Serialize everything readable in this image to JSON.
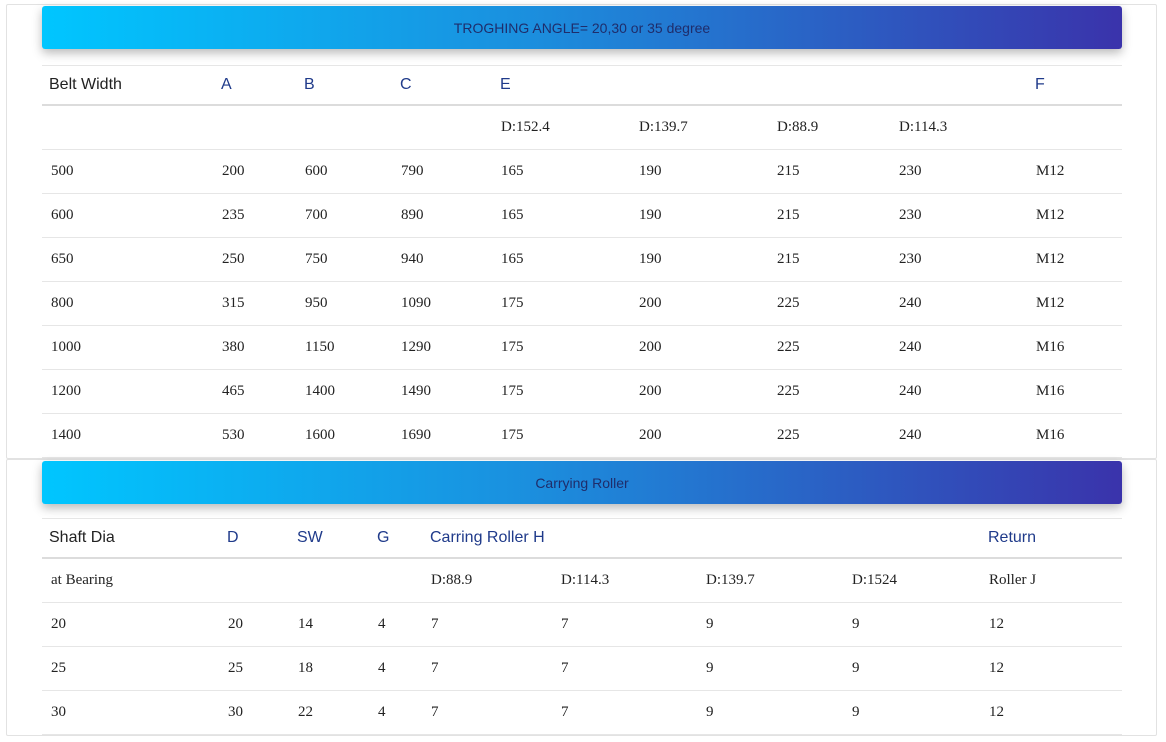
{
  "table1": {
    "title": "TROGHING ANGLE= 20,30 or 35 degree",
    "headers": [
      "Belt Width",
      "A",
      "B",
      "C",
      "E",
      "",
      "",
      "",
      "F"
    ],
    "subheaders": [
      "",
      "",
      "",
      "",
      "D:152.4",
      "D:139.7",
      "D:88.9",
      "D:114.3",
      ""
    ],
    "rows": [
      [
        "500",
        "200",
        "600",
        "790",
        "165",
        "190",
        "215",
        "230",
        "M12"
      ],
      [
        "600",
        "235",
        "700",
        "890",
        "165",
        "190",
        "215",
        "230",
        "M12"
      ],
      [
        "650",
        "250",
        "750",
        "940",
        "165",
        "190",
        "215",
        "230",
        "M12"
      ],
      [
        "800",
        "315",
        "950",
        "1090",
        "175",
        "200",
        "225",
        "240",
        "M12"
      ],
      [
        "1000",
        "380",
        "1150",
        "1290",
        "175",
        "200",
        "225",
        "240",
        "M16"
      ],
      [
        "1200",
        "465",
        "1400",
        "1490",
        "175",
        "200",
        "225",
        "240",
        "M16"
      ],
      [
        "1400",
        "530",
        "1600",
        "1690",
        "175",
        "200",
        "225",
        "240",
        "M16"
      ]
    ]
  },
  "table2": {
    "title": "Carrying Roller",
    "headers": [
      "Shaft Dia",
      "D",
      "SW",
      "G",
      "Carring Roller H",
      "",
      "",
      "",
      "Return"
    ],
    "subheaders": [
      "at Bearing",
      "",
      "",
      "",
      "D:88.9",
      "D:114.3",
      "D:139.7",
      "D:1524",
      "Roller J"
    ],
    "rows": [
      [
        "20",
        "20",
        "14",
        "4",
        "7",
        "7",
        "9",
        "9",
        "12"
      ],
      [
        "25",
        "25",
        "18",
        "4",
        "7",
        "7",
        "9",
        "9",
        "12"
      ],
      [
        "30",
        "30",
        "22",
        "4",
        "7",
        "7",
        "9",
        "9",
        "12"
      ]
    ]
  }
}
